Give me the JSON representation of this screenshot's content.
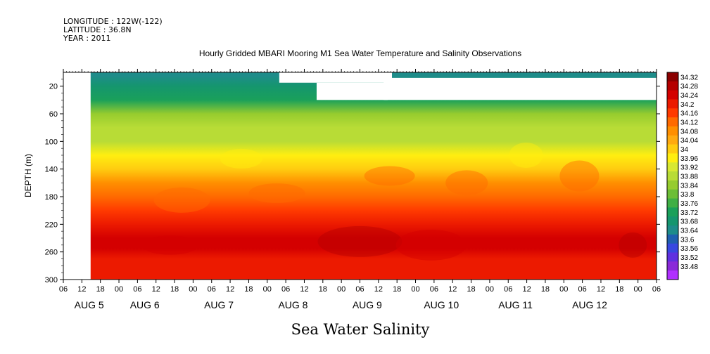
{
  "header": {
    "longitude": "LONGITUDE : 122W(-122)",
    "latitude": "LATITUDE : 36.8N",
    "year": "YEAR : 2011"
  },
  "chart_data": {
    "type": "heatmap",
    "title": "Hourly Gridded MBARI Mooring M1 Sea Water Temperature and Salinity Observations",
    "xlabel": "",
    "ylabel": "DEPTH (m)",
    "bottom_label": "Sea Water Salinity",
    "x_tick_labels": [
      "06",
      "12",
      "18",
      "00",
      "06",
      "12",
      "18",
      "00",
      "06",
      "12",
      "18",
      "00",
      "06",
      "12",
      "18",
      "00",
      "06",
      "12",
      "18",
      "00",
      "06",
      "12",
      "18",
      "00",
      "06",
      "12",
      "18",
      "00",
      "06",
      "12",
      "18",
      "00",
      "06"
    ],
    "day_labels": [
      "AUG  5",
      "AUG  6",
      "AUG  7",
      "AUG  8",
      "AUG  9",
      "AUG 10",
      "AUG 11",
      "AUG 12"
    ],
    "y_ticks": [
      20,
      60,
      100,
      140,
      180,
      220,
      260,
      300
    ],
    "ylim": [
      300,
      0
    ],
    "depth_profile": [
      {
        "depth": 5,
        "salinity": 33.66
      },
      {
        "depth": 20,
        "salinity": 33.68
      },
      {
        "depth": 40,
        "salinity": 33.74
      },
      {
        "depth": 60,
        "salinity": 33.85
      },
      {
        "depth": 80,
        "salinity": 33.88
      },
      {
        "depth": 100,
        "salinity": 33.9
      },
      {
        "depth": 120,
        "salinity": 33.96
      },
      {
        "depth": 140,
        "salinity": 34.02
      },
      {
        "depth": 160,
        "salinity": 34.1
      },
      {
        "depth": 180,
        "salinity": 34.12
      },
      {
        "depth": 200,
        "salinity": 34.16
      },
      {
        "depth": 220,
        "salinity": 34.2
      },
      {
        "depth": 240,
        "salinity": 34.24
      },
      {
        "depth": 255,
        "salinity": 34.26
      },
      {
        "depth": 270,
        "salinity": 34.23
      },
      {
        "depth": 285,
        "salinity": 34.22
      },
      {
        "depth": 300,
        "salinity": 34.21
      }
    ],
    "colorbar": {
      "labels": [
        "34.32",
        "34.28",
        "34.24",
        "34.2",
        "34.16",
        "34.12",
        "34.08",
        "34.04",
        "34",
        "33.96",
        "33.92",
        "33.88",
        "33.84",
        "33.8",
        "33.76",
        "33.72",
        "33.68",
        "33.64",
        "33.6",
        "33.56",
        "33.52",
        "33.48"
      ],
      "colors": [
        "#8b0000",
        "#b50000",
        "#d40000",
        "#ec1a00",
        "#ff3a00",
        "#ff6a00",
        "#ff8f00",
        "#ffaa10",
        "#ffcc10",
        "#ffee10",
        "#d8e832",
        "#b8dc36",
        "#96cc2e",
        "#6cbe36",
        "#3faf45",
        "#1aa05a",
        "#15966e",
        "#1e8c8a",
        "#2060b0",
        "#3848e0",
        "#6030e0",
        "#8a2ad8",
        "#b030ff"
      ]
    }
  }
}
